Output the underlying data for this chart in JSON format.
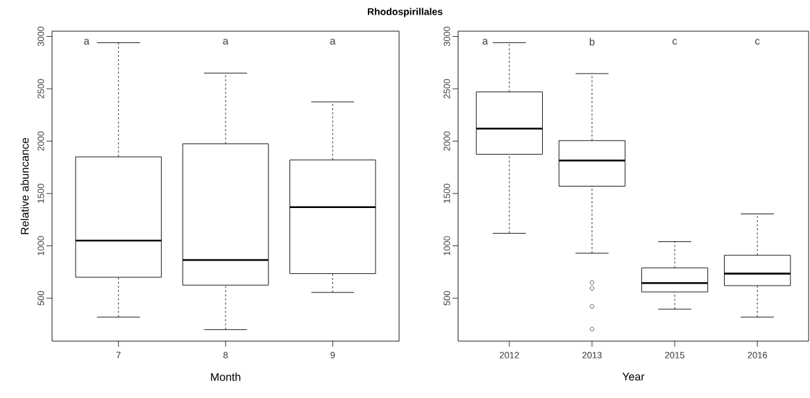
{
  "chart_data": [
    {
      "type": "box",
      "title": "Rhodospirillales",
      "xlabel": "Month",
      "ylabel": "Relative abuncance",
      "categories": [
        "7",
        "8",
        "9"
      ],
      "boxes": [
        {
          "low": 320,
          "q1": 700,
          "median": 1050,
          "q3": 1850,
          "high": 2940
        },
        {
          "low": 200,
          "q1": 625,
          "median": 865,
          "q3": 1975,
          "high": 2650
        },
        {
          "low": 555,
          "q1": 735,
          "median": 1370,
          "q3": 1820,
          "high": 2375
        }
      ],
      "ylim": [
        90,
        3050
      ],
      "yticks": [
        500,
        1000,
        1500,
        2000,
        2500,
        3000
      ],
      "grid": false,
      "annotations": [
        "a",
        "a",
        "a"
      ]
    },
    {
      "type": "box",
      "xlabel": "Year",
      "categories": [
        "2012",
        "2013",
        "2015",
        "2016"
      ],
      "boxes": [
        {
          "low": 1120,
          "q1": 1875,
          "median": 2120,
          "q3": 2470,
          "high": 2940
        },
        {
          "low": 930,
          "q1": 1570,
          "median": 1815,
          "q3": 2005,
          "high": 2645,
          "outliers": [
            650,
            595,
            420,
            205
          ]
        },
        {
          "low": 395,
          "q1": 560,
          "median": 645,
          "q3": 790,
          "high": 1040
        },
        {
          "low": 320,
          "q1": 620,
          "median": 735,
          "q3": 910,
          "high": 1305
        }
      ],
      "ylim": [
        90,
        3050
      ],
      "yticks": [
        500,
        1000,
        1500,
        2000,
        2500,
        3000
      ],
      "grid": false,
      "annotations": [
        "a",
        "b",
        "c",
        "c"
      ]
    }
  ]
}
